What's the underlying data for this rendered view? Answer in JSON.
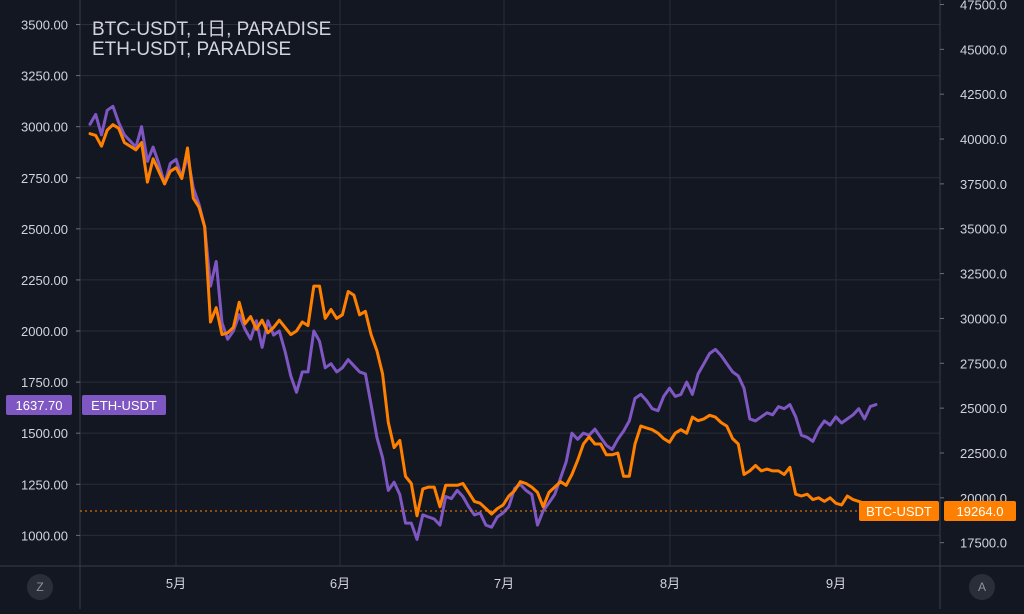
{
  "legend": {
    "line1": "BTC-USDT, 1日, PARADISE",
    "line2": "ETH-USDT, PARADISE"
  },
  "buttons": {
    "left": "Z",
    "right": "A"
  },
  "colors": {
    "background": "#131722",
    "grid": "#2a2e39",
    "eth": "#7e57c2",
    "btc": "#ff8000",
    "text": "#d1d4dc"
  },
  "chart_data": {
    "type": "line",
    "x_ticks": [
      "5月",
      "6月",
      "7月",
      "8月",
      "9月"
    ],
    "left_axis": {
      "ticks": [
        "3500.00",
        "3250.00",
        "3000.00",
        "2750.00",
        "2500.00",
        "2250.00",
        "2000.00",
        "1750.00",
        "1500.00",
        "1250.00",
        "1000.00"
      ],
      "range": [
        850,
        3620
      ]
    },
    "right_axis": {
      "ticks": [
        "47500.0",
        "45000.0",
        "42500.0",
        "40000.0",
        "37500.0",
        "35000.0",
        "32500.0",
        "30000.0",
        "27500.0",
        "25000.0",
        "22500.0",
        "20000.0",
        "17500.0"
      ],
      "range": [
        16200,
        47750
      ]
    },
    "series": [
      {
        "name": "ETH-USDT",
        "axis": "left",
        "last_value_label": "1637.70",
        "values": [
          3012,
          3060,
          2960,
          3080,
          3100,
          3020,
          2960,
          2930,
          2900,
          3000,
          2830,
          2900,
          2820,
          2720,
          2820,
          2840,
          2750,
          2860,
          2700,
          2620,
          2510,
          2220,
          2340,
          2040,
          1960,
          2000,
          2080,
          2010,
          1960,
          2050,
          1920,
          2050,
          1980,
          2000,
          1900,
          1780,
          1700,
          1800,
          1800,
          2000,
          1950,
          1820,
          1840,
          1800,
          1820,
          1860,
          1830,
          1800,
          1790,
          1640,
          1480,
          1380,
          1220,
          1260,
          1200,
          1060,
          1060,
          980,
          1100,
          1090,
          1080,
          1050,
          1190,
          1180,
          1220,
          1190,
          1140,
          1100,
          1110,
          1050,
          1040,
          1090,
          1110,
          1140,
          1230,
          1250,
          1220,
          1200,
          1050,
          1120,
          1160,
          1200,
          1280,
          1360,
          1500,
          1470,
          1500,
          1490,
          1520,
          1480,
          1440,
          1420,
          1470,
          1510,
          1560,
          1670,
          1690,
          1660,
          1620,
          1610,
          1680,
          1720,
          1680,
          1690,
          1750,
          1690,
          1790,
          1840,
          1890,
          1910,
          1880,
          1840,
          1800,
          1780,
          1720,
          1570,
          1560,
          1580,
          1600,
          1590,
          1630,
          1620,
          1640,
          1580,
          1490,
          1480,
          1460,
          1520,
          1560,
          1540,
          1580,
          1550,
          1570,
          1590,
          1620,
          1570,
          1630,
          1640
        ]
      },
      {
        "name": "BTC-USDT",
        "axis": "right",
        "last_value_label": "19264.0",
        "values": [
          40300,
          40200,
          39600,
          40500,
          40800,
          40600,
          39800,
          39600,
          39400,
          39800,
          37600,
          38900,
          38200,
          37500,
          38200,
          38400,
          37800,
          39500,
          36700,
          36200,
          35100,
          29800,
          30600,
          29100,
          29200,
          29500,
          30900,
          29700,
          30100,
          29400,
          29900,
          29200,
          29500,
          29900,
          29500,
          29100,
          29300,
          29800,
          29600,
          31800,
          31800,
          30000,
          30500,
          30000,
          30200,
          31500,
          31300,
          30200,
          30400,
          29100,
          28200,
          26900,
          24200,
          22800,
          23200,
          21200,
          20800,
          19000,
          20500,
          20600,
          20600,
          19500,
          20700,
          20700,
          20700,
          20800,
          20300,
          19800,
          19700,
          19400,
          19100,
          19400,
          19600,
          20100,
          20400,
          20900,
          20800,
          20600,
          20300,
          19500,
          20300,
          20600,
          20900,
          20700,
          21300,
          22100,
          23000,
          23400,
          23000,
          23000,
          22400,
          22400,
          22500,
          21200,
          21200,
          23000,
          24000,
          23900,
          23800,
          23600,
          23300,
          23100,
          23600,
          23800,
          23600,
          24500,
          24300,
          24400,
          24600,
          24500,
          24200,
          24000,
          23300,
          23000,
          21300,
          21500,
          21800,
          21500,
          21600,
          21500,
          21500,
          21300,
          21700,
          20200,
          20100,
          20200,
          19900,
          20000,
          19800,
          20000,
          19700,
          19600,
          20100,
          19900,
          19800,
          19700,
          19400,
          19264
        ]
      }
    ]
  }
}
